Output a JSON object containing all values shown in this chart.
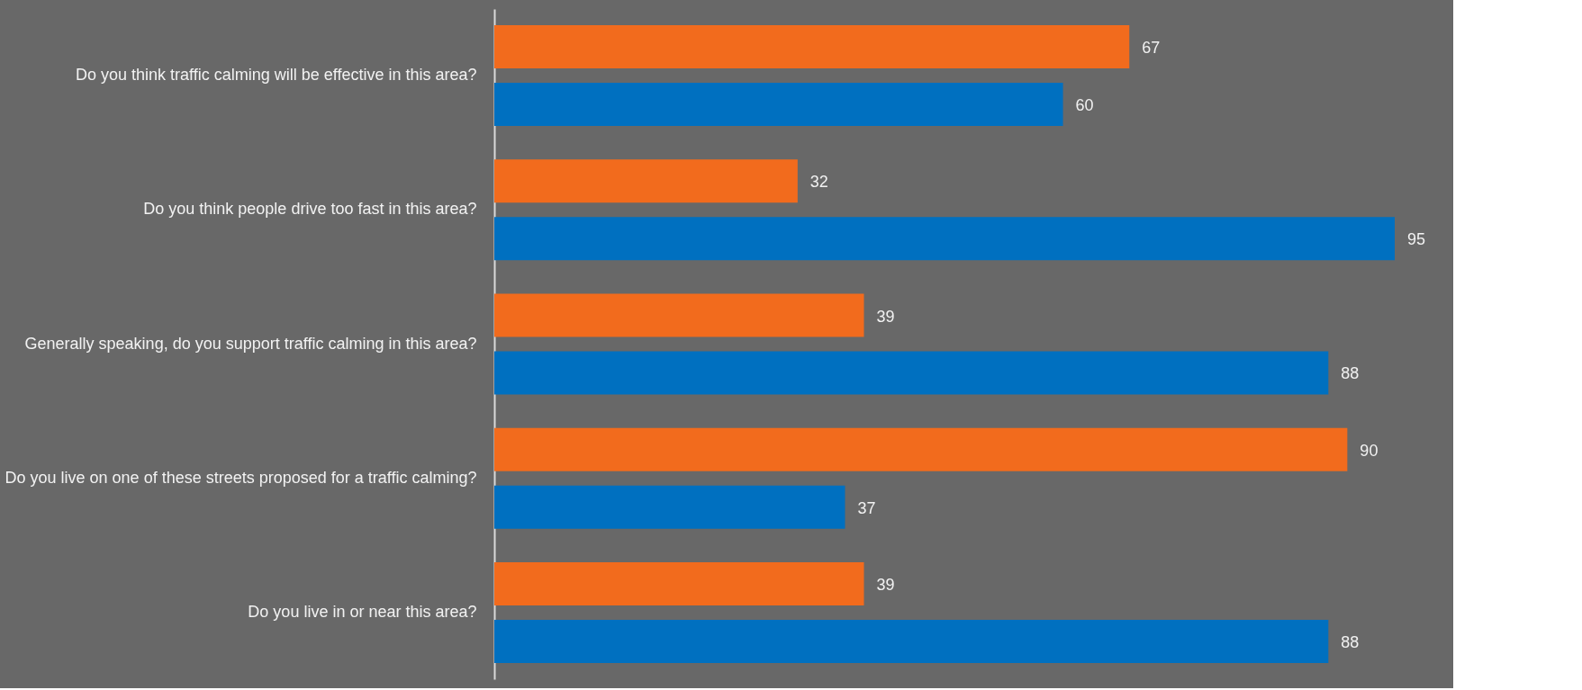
{
  "chart_data": {
    "type": "bar",
    "orientation": "horizontal",
    "data_labels": true,
    "legend": false,
    "grid": false,
    "categories": [
      "Do you think traffic calming will be effective in this area?",
      "Do you think people drive too fast in this area?",
      "Generally speaking, do you support traffic calming in this area?",
      "Do you live on one of these streets proposed for a traffic calming?",
      "Do you live in or near this area?"
    ],
    "series": [
      {
        "color": "#f26b1d",
        "values": [
          67,
          32,
          39,
          90,
          39
        ]
      },
      {
        "color": "#0070c0",
        "values": [
          60,
          95,
          88,
          37,
          88
        ]
      }
    ]
  }
}
